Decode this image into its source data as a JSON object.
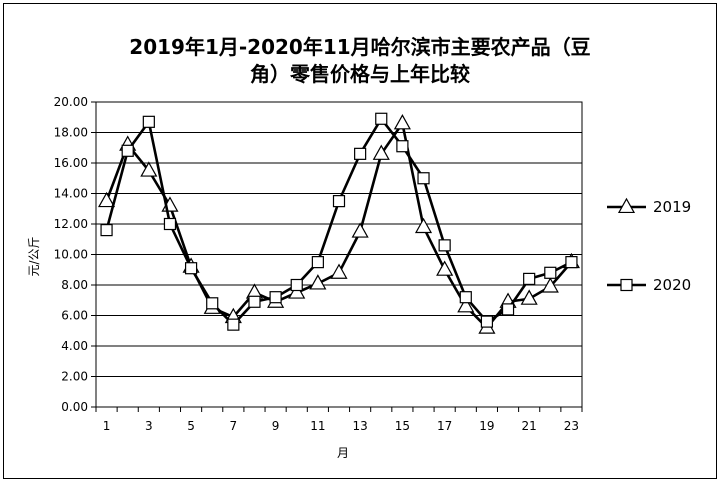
{
  "chart_data": {
    "type": "line",
    "title": "2019年1月-2020年11月哈尔滨市主要农产品（豆角）零售价格与上年比较",
    "title_lines": [
      "2019年1月-2020年11月哈尔滨市主要农产品（豆",
      "角）零售价格与上年比较"
    ],
    "xlabel": "月",
    "ylabel": "元/公斤",
    "x": [
      1,
      2,
      3,
      4,
      5,
      6,
      7,
      8,
      9,
      10,
      11,
      12,
      13,
      14,
      15,
      16,
      17,
      18,
      19,
      20,
      21,
      22,
      23
    ],
    "x_tick_labels": [
      "1",
      "3",
      "5",
      "7",
      "9",
      "11",
      "13",
      "15",
      "17",
      "19",
      "21",
      "23"
    ],
    "y_tick_labels": [
      "0.00",
      "2.00",
      "4.00",
      "6.00",
      "8.00",
      "10.00",
      "12.00",
      "14.00",
      "16.00",
      "18.00",
      "20.00"
    ],
    "ylim": [
      0,
      20
    ],
    "grid": true,
    "legend_position": "right",
    "series": [
      {
        "name": "2019",
        "marker": "triangle",
        "values": [
          13.5,
          17.2,
          15.5,
          13.2,
          9.2,
          6.5,
          5.9,
          7.5,
          6.9,
          7.5,
          8.1,
          8.8,
          11.5,
          16.6,
          18.6,
          11.8,
          9.0,
          6.6,
          5.2,
          6.9,
          7.1,
          7.9,
          9.5
        ]
      },
      {
        "name": "2020",
        "marker": "square",
        "values": [
          11.6,
          16.8,
          18.7,
          12.0,
          9.1,
          6.8,
          5.4,
          6.9,
          7.2,
          8.0,
          9.5,
          13.5,
          16.6,
          18.9,
          17.1,
          15.0,
          10.6,
          7.2,
          5.6,
          6.4,
          8.4,
          8.8,
          9.5
        ]
      }
    ]
  }
}
